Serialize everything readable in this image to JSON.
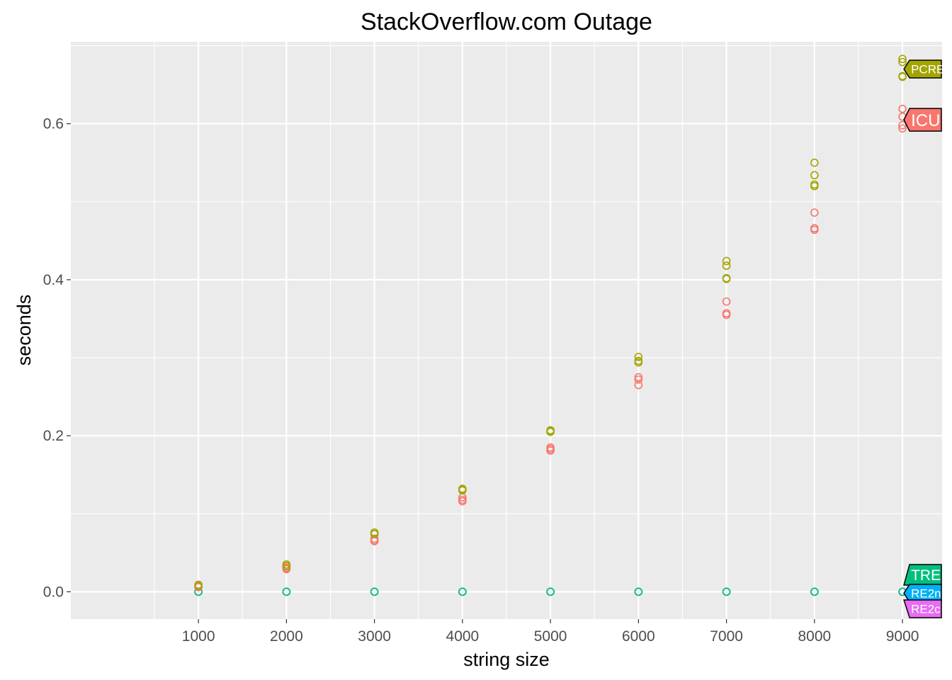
{
  "chart_data": {
    "type": "scatter",
    "title": "StackOverflow.com Outage",
    "xlabel": "string size",
    "ylabel": "seconds",
    "x_ticks": [
      "1000",
      "2000",
      "3000",
      "4000",
      "5000",
      "6000",
      "7000",
      "8000",
      "9000"
    ],
    "y_ticks": [
      "0.0",
      "0.2",
      "0.4",
      "0.6"
    ],
    "xlim": [
      -450,
      9450
    ],
    "ylim": [
      -0.035,
      0.705
    ],
    "grid": true,
    "legend": "direct labels at right end of each series",
    "series": [
      {
        "name": "PCRE",
        "color": "#a3a500",
        "points": [
          [
            1000,
            0.008
          ],
          [
            1000,
            0.009
          ],
          [
            1000,
            0.008
          ],
          [
            2000,
            0.033
          ],
          [
            2000,
            0.035
          ],
          [
            2000,
            0.033
          ],
          [
            3000,
            0.074
          ],
          [
            3000,
            0.076
          ],
          [
            3000,
            0.074
          ],
          [
            4000,
            0.13
          ],
          [
            4000,
            0.132
          ],
          [
            4000,
            0.131
          ],
          [
            5000,
            0.205
          ],
          [
            5000,
            0.206
          ],
          [
            5000,
            0.207
          ],
          [
            6000,
            0.294
          ],
          [
            6000,
            0.296
          ],
          [
            6000,
            0.301
          ],
          [
            7000,
            0.401
          ],
          [
            7000,
            0.402
          ],
          [
            7000,
            0.418
          ],
          [
            7000,
            0.424
          ],
          [
            8000,
            0.52
          ],
          [
            8000,
            0.522
          ],
          [
            8000,
            0.534
          ],
          [
            8000,
            0.55
          ],
          [
            9000,
            0.66
          ],
          [
            9000,
            0.661
          ],
          [
            9000,
            0.679
          ],
          [
            9000,
            0.683
          ]
        ]
      },
      {
        "name": "ICU",
        "color": "#f8766d",
        "points": [
          [
            1000,
            0.006
          ],
          [
            1000,
            0.007
          ],
          [
            1000,
            0.006
          ],
          [
            2000,
            0.03
          ],
          [
            2000,
            0.031
          ],
          [
            2000,
            0.029
          ],
          [
            3000,
            0.065
          ],
          [
            3000,
            0.068
          ],
          [
            3000,
            0.066
          ],
          [
            4000,
            0.116
          ],
          [
            4000,
            0.121
          ],
          [
            4000,
            0.118
          ],
          [
            5000,
            0.181
          ],
          [
            5000,
            0.183
          ],
          [
            5000,
            0.185
          ],
          [
            6000,
            0.265
          ],
          [
            6000,
            0.272
          ],
          [
            6000,
            0.275
          ],
          [
            7000,
            0.355
          ],
          [
            7000,
            0.357
          ],
          [
            7000,
            0.372
          ],
          [
            8000,
            0.464
          ],
          [
            8000,
            0.466
          ],
          [
            8000,
            0.486
          ],
          [
            9000,
            0.594
          ],
          [
            9000,
            0.598
          ],
          [
            9000,
            0.609
          ],
          [
            9000,
            0.619
          ]
        ]
      },
      {
        "name": "TRE",
        "color": "#00bf7d",
        "points": [
          [
            1000,
            0.0
          ],
          [
            2000,
            0.0
          ],
          [
            3000,
            0.0
          ],
          [
            4000,
            0.0
          ],
          [
            5000,
            0.0
          ],
          [
            6000,
            0.0
          ],
          [
            7000,
            0.0
          ],
          [
            8000,
            0.0
          ],
          [
            9000,
            0.0
          ]
        ]
      },
      {
        "name": "RE2n",
        "color": "#00b0f6",
        "points": [
          [
            1000,
            0.0
          ],
          [
            2000,
            0.0
          ],
          [
            3000,
            0.0
          ],
          [
            4000,
            0.0
          ],
          [
            5000,
            0.0
          ],
          [
            6000,
            0.0
          ],
          [
            7000,
            0.0
          ],
          [
            8000,
            0.0
          ],
          [
            9000,
            0.0
          ]
        ]
      },
      {
        "name": "RE2c",
        "color": "#e76bf3",
        "points": [
          [
            1000,
            0.0
          ],
          [
            2000,
            0.0
          ],
          [
            3000,
            0.0
          ],
          [
            4000,
            0.0
          ],
          [
            5000,
            0.0
          ],
          [
            6000,
            0.0
          ],
          [
            7000,
            0.0
          ],
          [
            8000,
            0.0
          ],
          [
            9000,
            0.0
          ]
        ]
      }
    ]
  }
}
